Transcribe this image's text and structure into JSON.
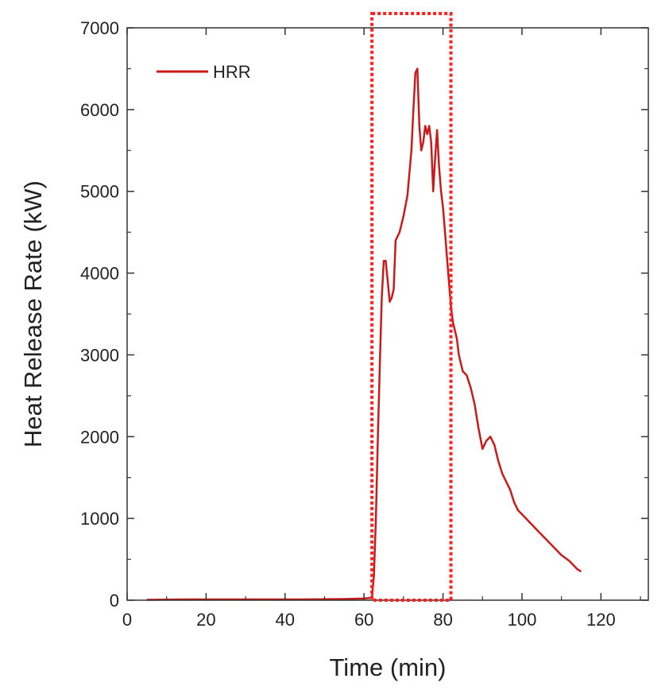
{
  "chart_data": {
    "type": "line",
    "xlabel": "Time (min)",
    "ylabel": "Heat Release Rate (kW)",
    "xlim": [
      0,
      132
    ],
    "ylim": [
      0,
      7000
    ],
    "xticks": [
      0,
      20,
      40,
      60,
      80,
      100,
      120
    ],
    "yticks": [
      0,
      1000,
      2000,
      3000,
      4000,
      5000,
      6000,
      7000
    ],
    "grid": false,
    "legend_position": "top-left",
    "series": [
      {
        "name": "HRR",
        "color": "#cc1a1a",
        "x": [
          5,
          15,
          30,
          45,
          55,
          60,
          62,
          62.5,
          63,
          63.5,
          64,
          64.5,
          65,
          65.5,
          66,
          66.5,
          67,
          67.5,
          68,
          68.5,
          69,
          70,
          71,
          72,
          72.5,
          73,
          73.5,
          74,
          74.5,
          75,
          75.5,
          76,
          76.5,
          77,
          77.5,
          78,
          78.5,
          79,
          79.5,
          80,
          80.5,
          81,
          81.5,
          82,
          82.5,
          83,
          83.5,
          84,
          85,
          86,
          87,
          88,
          89,
          90,
          91,
          92,
          93,
          94,
          95,
          96,
          97,
          98,
          99,
          100,
          102,
          104,
          106,
          108,
          110,
          112,
          114,
          115
        ],
        "y": [
          5,
          10,
          10,
          10,
          15,
          20,
          30,
          300,
          1000,
          2000,
          2900,
          3700,
          4150,
          4150,
          3900,
          3650,
          3700,
          3800,
          4400,
          4450,
          4500,
          4700,
          4950,
          5500,
          6000,
          6450,
          6500,
          5800,
          5500,
          5600,
          5800,
          5700,
          5800,
          5600,
          5000,
          5400,
          5750,
          5300,
          5000,
          4800,
          4500,
          4200,
          3900,
          3600,
          3400,
          3300,
          3200,
          3000,
          2800,
          2750,
          2600,
          2400,
          2100,
          1850,
          1950,
          2000,
          1900,
          1700,
          1550,
          1450,
          1350,
          1200,
          1100,
          1050,
          950,
          850,
          750,
          650,
          550,
          480,
          380,
          350
        ]
      }
    ],
    "annotations": [
      {
        "type": "dotted-rectangle",
        "color": "#ff2020",
        "x_range": [
          62,
          82
        ]
      }
    ]
  }
}
